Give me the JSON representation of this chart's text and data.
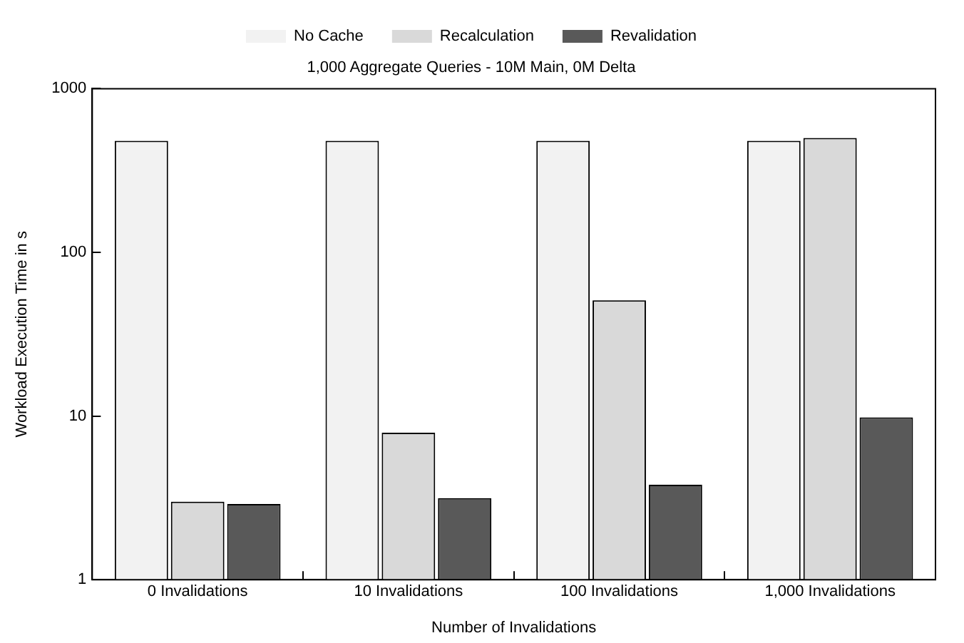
{
  "chart_data": {
    "type": "bar",
    "title": "1,000 Aggregate Queries - 10M Main, 0M Delta",
    "xlabel": "Number of Invalidations",
    "ylabel": "Workload Execution Time in s",
    "categories": [
      "0 Invalidations",
      "10 Invalidations",
      "100 Invalidations",
      "1,000 Invalidations"
    ],
    "series": [
      {
        "name": "No Cache",
        "color": "#f2f2f2",
        "values": [
          480,
          480,
          480,
          480
        ]
      },
      {
        "name": "Recalculation",
        "color": "#d9d9d9",
        "values": [
          3,
          7.9,
          51,
          500
        ]
      },
      {
        "name": "Revalidation",
        "color": "#595959",
        "values": [
          2.9,
          3.15,
          3.8,
          9.8
        ]
      }
    ],
    "log": "y",
    "ylim": [
      1,
      1000
    ],
    "yticks": [
      1,
      10,
      100,
      1000
    ],
    "grid": false,
    "legend": "top"
  }
}
